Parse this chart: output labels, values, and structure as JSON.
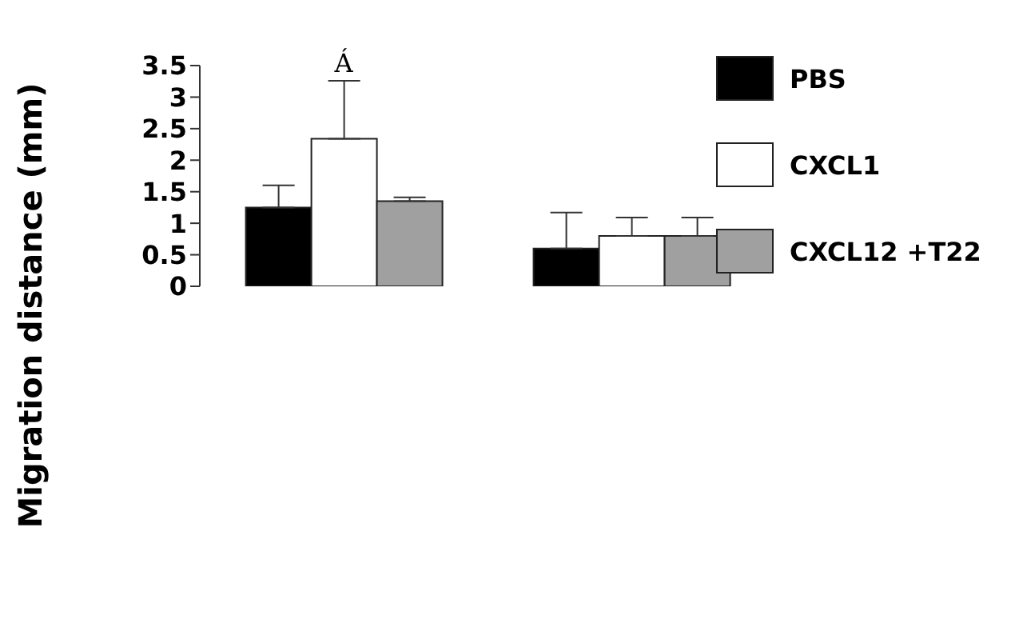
{
  "chart_data": {
    "type": "bar",
    "ylabel": "Migration distance (mm)",
    "categories": [
      null,
      null
    ],
    "series": [
      {
        "name": "PBS",
        "color": "#000000",
        "values": [
          1.25,
          0.6
        ],
        "errors": [
          [
            1.25,
            1.6
          ],
          [
            0.6,
            1.17
          ]
        ]
      },
      {
        "name": "CXCL1",
        "color": "#ffffff",
        "values": [
          2.34,
          0.8
        ],
        "errors": [
          [
            2.34,
            3.26
          ],
          [
            0.8,
            1.09
          ]
        ]
      },
      {
        "name": "CXCL12 +T22",
        "color": "#a0a0a0",
        "values": [
          1.35,
          0.8
        ],
        "errors": [
          [
            1.35,
            1.41
          ],
          [
            0.8,
            1.09
          ]
        ]
      }
    ],
    "ylim": [
      0,
      3.5
    ],
    "yticks": [
      0,
      0.5,
      1,
      1.5,
      2,
      2.5,
      3,
      3.5
    ],
    "legend": "top right",
    "grid": false,
    "annotations": [
      "Á"
    ]
  }
}
